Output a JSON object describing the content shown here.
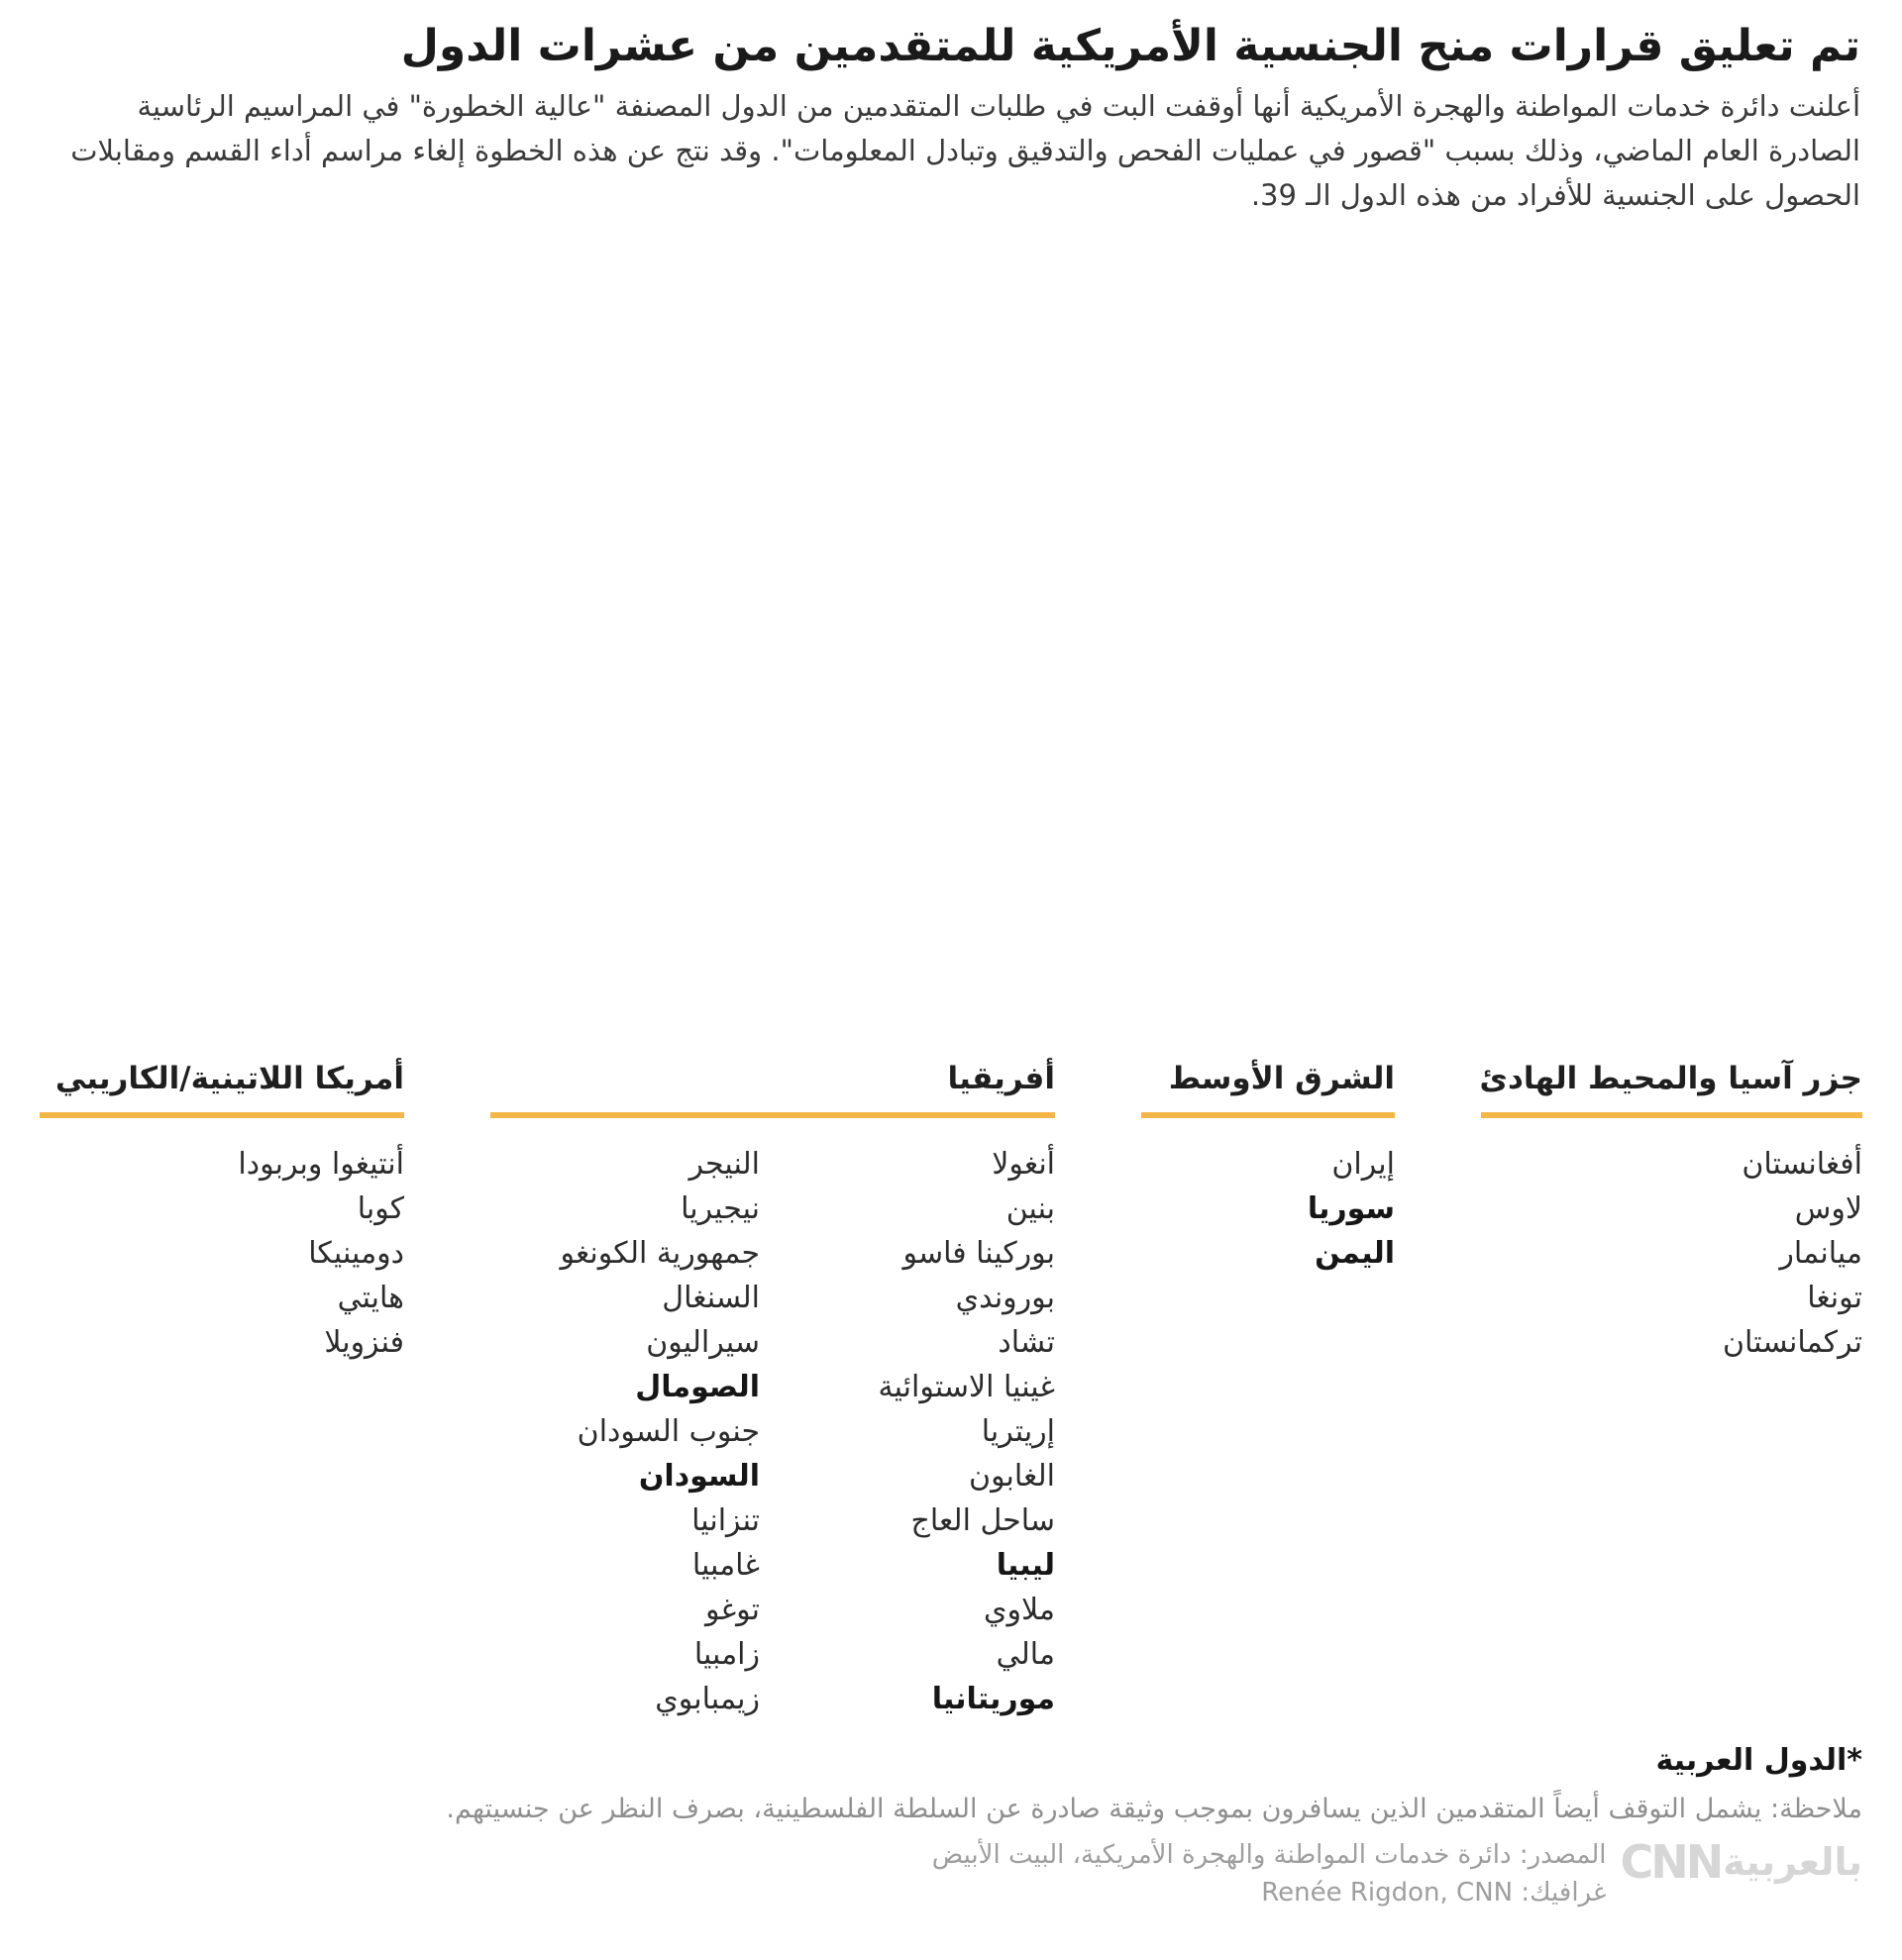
{
  "title": "تم تعليق قرارات منح الجنسية الأمريكية للمتقدمين من عشرات الدول",
  "intro": "أعلنت دائرة خدمات المواطنة والهجرة الأمريكية أنها أوقفت البت في طلبات المتقدمين من الدول المصنفة \"عالية الخطورة\" في المراسيم الرئاسية الصادرة العام الماضي، وذلك بسبب \"قصور في عمليات الفحص والتدقيق وتبادل المعلومات\". وقد نتج عن هذه الخطوة إلغاء مراسم أداء القسم ومقابلات الحصول على الجنسية للأفراد من هذه الدول الـ 39.",
  "colors": {
    "accent": "#F3B64A",
    "map_land": "#E4E4E4",
    "map_border": "#C9C9C9",
    "map_highlight": "#F5B855"
  },
  "chart_data": {
    "type": "heatmap",
    "title": "تم تعليق قرارات منح الجنسية الأمريكية للمتقدمين من عشرات الدول",
    "total_countries": 39,
    "map_note": "خريطة عالم، الدول المعلقة مظللة باللون البرتقالي",
    "groups": [
      {
        "label": "جزر آسيا والمحيط الهادئ",
        "countries": [
          "أفغانستان",
          "لاوس",
          "ميانمار",
          "تونغا",
          "تركمانستان"
        ]
      },
      {
        "label": "الشرق الأوسط",
        "countries": [
          "إيران",
          "سوريا",
          "اليمن"
        ],
        "arab_countries_bold": [
          "سوريا",
          "اليمن"
        ]
      },
      {
        "label": "أفريقيا",
        "countries": [
          "أنغولا",
          "بنين",
          "بوركينا فاسو",
          "بوروندي",
          "تشاد",
          "غينيا الاستوائية",
          "إريتريا",
          "الغابون",
          "ساحل العاج",
          "ليبيا",
          "ملاوي",
          "مالي",
          "موريتانيا",
          "النيجر",
          "نيجيريا",
          "جمهورية الكونغو",
          "السنغال",
          "سيراليون",
          "الصومال",
          "جنوب السودان",
          "السودان",
          "تنزانيا",
          "غامبيا",
          "توغو",
          "زامبيا",
          "زيمبابوي"
        ],
        "arab_countries_bold": [
          "ليبيا",
          "موريتانيا",
          "الصومال",
          "السودان"
        ]
      },
      {
        "label": "أمريكا اللاتينية/الكاريبي",
        "countries": [
          "أنتيغوا وبربودا",
          "كوبا",
          "دومينيكا",
          "هايتي",
          "فنزويلا"
        ]
      }
    ]
  },
  "legend": {
    "groups": [
      {
        "label": "جزر آسيا والمحيط الهادئ",
        "columns": [
          [
            {
              "name": "أفغانستان"
            },
            {
              "name": "لاوس"
            },
            {
              "name": "ميانمار"
            },
            {
              "name": "تونغا"
            },
            {
              "name": "تركمانستان"
            }
          ]
        ]
      },
      {
        "label": "الشرق الأوسط",
        "columns": [
          [
            {
              "name": "إيران"
            },
            {
              "name": "سوريا",
              "bold": true
            },
            {
              "name": "اليمن",
              "bold": true
            }
          ]
        ]
      },
      {
        "label": "أفريقيا",
        "columns": [
          [
            {
              "name": "أنغولا"
            },
            {
              "name": "بنين"
            },
            {
              "name": "بوركينا فاسو"
            },
            {
              "name": "بوروندي"
            },
            {
              "name": "تشاد"
            },
            {
              "name": "غينيا الاستوائية"
            },
            {
              "name": "إريتريا"
            },
            {
              "name": "الغابون"
            },
            {
              "name": "ساحل العاج"
            },
            {
              "name": "ليبيا",
              "bold": true
            },
            {
              "name": "ملاوي"
            },
            {
              "name": "مالي"
            },
            {
              "name": "موريتانيا",
              "bold": true
            }
          ],
          [
            {
              "name": "النيجر"
            },
            {
              "name": "نيجيريا"
            },
            {
              "name": "جمهورية الكونغو"
            },
            {
              "name": "السنغال"
            },
            {
              "name": "سيراليون"
            },
            {
              "name": "الصومال",
              "bold": true
            },
            {
              "name": "جنوب السودان"
            },
            {
              "name": "السودان",
              "bold": true
            },
            {
              "name": "تنزانيا"
            },
            {
              "name": "غامبيا"
            },
            {
              "name": "توغو"
            },
            {
              "name": "زامبيا"
            },
            {
              "name": "زيمبابوي"
            }
          ]
        ]
      },
      {
        "label": "أمريكا اللاتينية/الكاريبي",
        "columns": [
          [
            {
              "name": "أنتيغوا وبربودا"
            },
            {
              "name": "كوبا"
            },
            {
              "name": "دومينيكا"
            },
            {
              "name": "هايتي"
            },
            {
              "name": "فنزويلا"
            }
          ]
        ]
      }
    ]
  },
  "footnote": "*الدول العربية",
  "note": "ملاحظة: يشمل التوقف أيضاً المتقدمين الذين يسافرون بموجب وثيقة صادرة عن السلطة الفلسطينية، بصرف النظر عن جنسيتهم.",
  "source": "المصدر: دائرة خدمات المواطنة والهجرة الأمريكية، البيت الأبيض",
  "credit": "غرافيك: Renée Rigdon, CNN",
  "logo": {
    "latin": "CNN",
    "arabic": "بالعربية"
  }
}
